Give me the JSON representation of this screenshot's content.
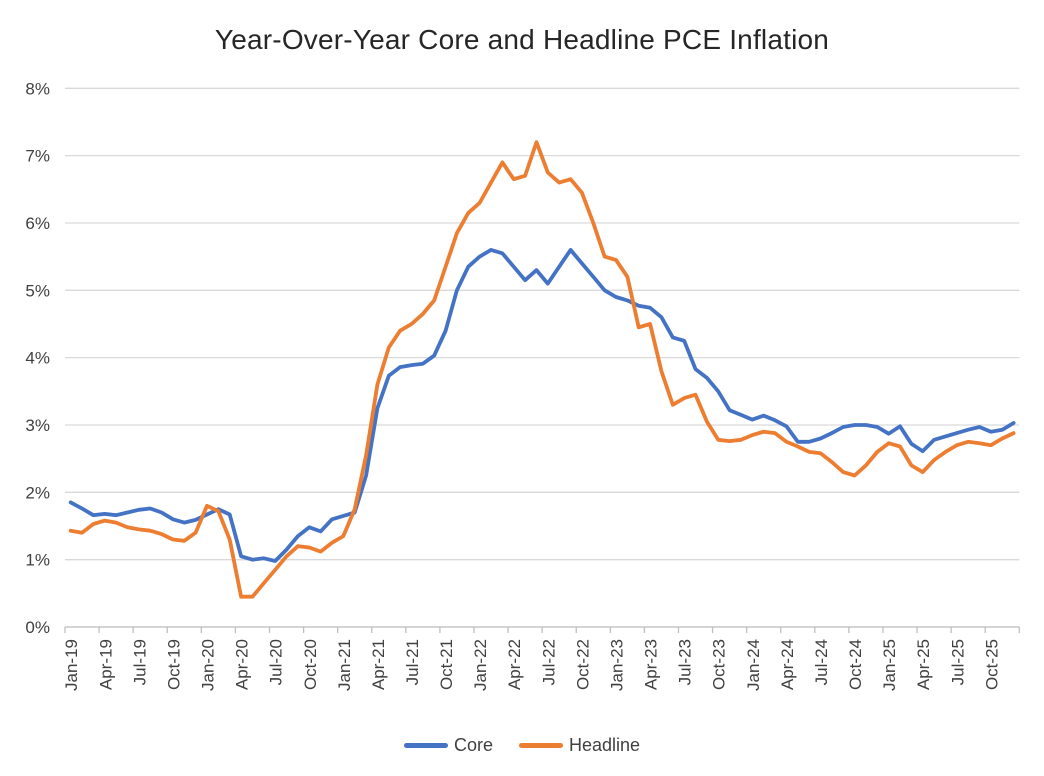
{
  "chart_data": {
    "type": "line",
    "title": "Year-Over-Year Core and Headline PCE Inflation",
    "categories": [
      "Jan-19",
      "Feb-19",
      "Mar-19",
      "Apr-19",
      "May-19",
      "Jun-19",
      "Jul-19",
      "Aug-19",
      "Sep-19",
      "Oct-19",
      "Nov-19",
      "Dec-19",
      "Jan-20",
      "Feb-20",
      "Mar-20",
      "Apr-20",
      "May-20",
      "Jun-20",
      "Jul-20",
      "Aug-20",
      "Sep-20",
      "Oct-20",
      "Nov-20",
      "Dec-20",
      "Jan-21",
      "Feb-21",
      "Mar-21",
      "Apr-21",
      "May-21",
      "Jun-21",
      "Jul-21",
      "Aug-21",
      "Sep-21",
      "Oct-21",
      "Nov-21",
      "Dec-21",
      "Jan-22",
      "Feb-22",
      "Mar-22",
      "Apr-22",
      "May-22",
      "Jun-22",
      "Jul-22",
      "Aug-22",
      "Sep-22",
      "Oct-22",
      "Nov-22",
      "Dec-22",
      "Jan-23",
      "Feb-23",
      "Mar-23",
      "Apr-23",
      "May-23",
      "Jun-23",
      "Jul-23",
      "Aug-23",
      "Sep-23",
      "Oct-23",
      "Nov-23",
      "Dec-23",
      "Jan-24",
      "Feb-24",
      "Mar-24",
      "Apr-24",
      "May-24",
      "Jun-24",
      "Jul-24",
      "Aug-24",
      "Sep-24",
      "Oct-24",
      "Nov-24",
      "Dec-24",
      "Jan-25",
      "Feb-25",
      "Mar-25",
      "Apr-25",
      "May-25",
      "Jun-25",
      "Jul-25",
      "Aug-25",
      "Sep-25",
      "Oct-25",
      "Nov-25",
      "Dec-25"
    ],
    "series": [
      {
        "name": "Core",
        "color": "#4472C4",
        "values": [
          1.85,
          1.76,
          1.66,
          1.68,
          1.66,
          1.7,
          1.74,
          1.76,
          1.7,
          1.6,
          1.55,
          1.59,
          1.67,
          1.75,
          1.67,
          1.05,
          1.0,
          1.02,
          0.98,
          1.15,
          1.35,
          1.48,
          1.42,
          1.6,
          1.65,
          1.7,
          2.25,
          3.25,
          3.73,
          3.86,
          3.89,
          3.91,
          4.03,
          4.4,
          5.0,
          5.35,
          5.5,
          5.6,
          5.55,
          5.35,
          5.15,
          5.3,
          5.1,
          5.35,
          5.6,
          5.4,
          5.2,
          5.0,
          4.9,
          4.85,
          4.77,
          4.74,
          4.6,
          4.3,
          4.25,
          3.83,
          3.7,
          3.5,
          3.22,
          3.15,
          3.08,
          3.14,
          3.07,
          2.98,
          2.75,
          2.75,
          2.8,
          2.88,
          2.97,
          3.0,
          3.0,
          2.97,
          2.87,
          2.98,
          2.72,
          2.61,
          2.78,
          2.83,
          2.88,
          2.93,
          2.97,
          2.9,
          2.93,
          3.03
        ]
      },
      {
        "name": "Headline",
        "color": "#ED7D31",
        "values": [
          1.43,
          1.4,
          1.53,
          1.58,
          1.55,
          1.48,
          1.45,
          1.43,
          1.38,
          1.3,
          1.28,
          1.4,
          1.8,
          1.72,
          1.3,
          0.45,
          0.45,
          0.65,
          0.85,
          1.05,
          1.2,
          1.18,
          1.12,
          1.25,
          1.35,
          1.75,
          2.55,
          3.6,
          4.15,
          4.4,
          4.5,
          4.65,
          4.85,
          5.35,
          5.85,
          6.15,
          6.3,
          6.6,
          6.9,
          6.65,
          6.7,
          7.2,
          6.75,
          6.6,
          6.65,
          6.45,
          6.0,
          5.5,
          5.45,
          5.2,
          4.45,
          4.5,
          3.8,
          3.3,
          3.4,
          3.45,
          3.05,
          2.78,
          2.76,
          2.78,
          2.85,
          2.9,
          2.88,
          2.75,
          2.68,
          2.6,
          2.58,
          2.45,
          2.3,
          2.25,
          2.4,
          2.6,
          2.73,
          2.68,
          2.4,
          2.3,
          2.48,
          2.6,
          2.7,
          2.75,
          2.73,
          2.7,
          2.8,
          2.88
        ]
      }
    ],
    "ylim": [
      0,
      8
    ],
    "y_tick_labels": [
      "0%",
      "1%",
      "2%",
      "3%",
      "4%",
      "5%",
      "6%",
      "7%",
      "8%"
    ],
    "x_tick_labels": [
      "Jan-19",
      "Apr-19",
      "Jul-19",
      "Oct-19",
      "Jan-20",
      "Apr-20",
      "Jul-20",
      "Oct-20",
      "Jan-21",
      "Apr-21",
      "Jul-21",
      "Oct-21",
      "Jan-22",
      "Apr-22",
      "Jul-22",
      "Oct-22",
      "Jan-23",
      "Apr-23",
      "Jul-23",
      "Oct-23",
      "Jan-24",
      "Apr-24",
      "Jul-24",
      "Oct-24",
      "Jan-25",
      "Apr-25",
      "Jul-25",
      "Oct-25"
    ],
    "x_label_every": 3,
    "grid": "horizontal",
    "legend_position": "bottom",
    "colors": {
      "gridline": "#D9D9D9",
      "axis_line": "#BFBFBF",
      "tick_mark": "#BFBFBF",
      "label_text": "#404040",
      "title_text": "#262626"
    }
  }
}
